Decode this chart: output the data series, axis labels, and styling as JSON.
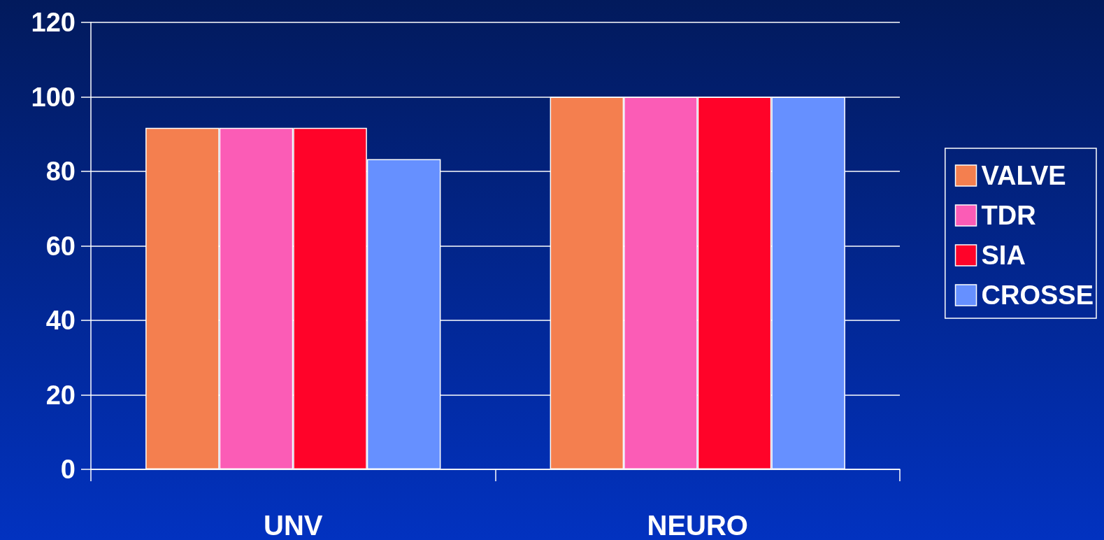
{
  "chart_data": {
    "type": "bar",
    "categories": [
      "UNV",
      "NEURO"
    ],
    "series": [
      {
        "name": "VALVE",
        "color": "#f47f4f",
        "values": [
          91.7,
          100
        ]
      },
      {
        "name": "TDR",
        "color": "#fb5cb6",
        "values": [
          91.7,
          100
        ]
      },
      {
        "name": "SIA",
        "color": "#ff0329",
        "values": [
          91.7,
          100
        ]
      },
      {
        "name": "CROSSE",
        "color": "#6690ff",
        "values": [
          83.3,
          100
        ]
      }
    ],
    "ylim": [
      0,
      120
    ],
    "yticks": [
      0,
      20,
      40,
      60,
      80,
      100,
      120
    ],
    "grid": "y",
    "legend": "right"
  }
}
